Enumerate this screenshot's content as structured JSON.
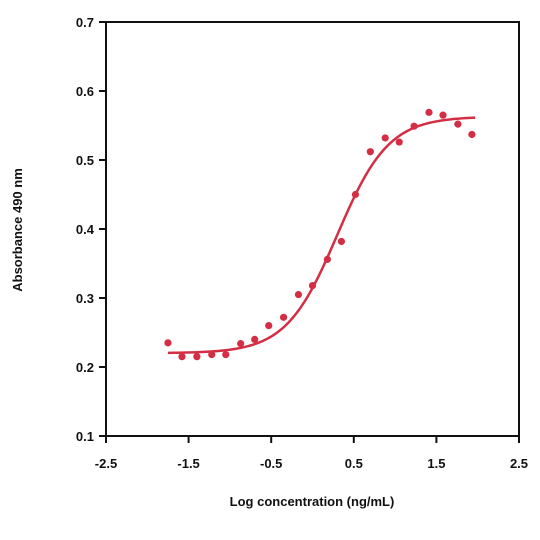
{
  "chart_data": {
    "type": "scatter",
    "title": "",
    "xlabel": "Log concentration (ng/mL)",
    "ylabel": "Absorbance 490 nm",
    "xlim": [
      -2.5,
      2.5
    ],
    "ylim": [
      0.1,
      0.7
    ],
    "xticks": [
      "-2.5",
      "-1.5",
      "-0.5",
      "0.5",
      "1.5",
      "2.5"
    ],
    "yticks": [
      "0.1",
      "0.2",
      "0.3",
      "0.4",
      "0.5",
      "0.6",
      "0.7"
    ],
    "grid": false,
    "series": [
      {
        "type": "scatter",
        "color": "#d42e44",
        "x": [
          -1.75,
          -1.58,
          -1.4,
          -1.22,
          -1.05,
          -0.87,
          -0.7,
          -0.53,
          -0.35,
          -0.17,
          0.0,
          0.18,
          0.35,
          0.52,
          0.7,
          0.88,
          1.05,
          1.23,
          1.41,
          1.58,
          1.76,
          1.93
        ],
        "y": [
          0.235,
          0.215,
          0.215,
          0.218,
          0.218,
          0.234,
          0.24,
          0.26,
          0.272,
          0.305,
          0.318,
          0.356,
          0.382,
          0.45,
          0.512,
          0.532,
          0.526,
          0.549,
          0.569,
          0.565,
          0.552,
          0.537
        ]
      },
      {
        "type": "line",
        "color": "#d42e44",
        "fit": {
          "model": "4PL",
          "bottom": 0.22,
          "top": 0.563,
          "x50": 0.3,
          "slope": 1.4
        },
        "x_range": [
          -1.75,
          1.97
        ]
      }
    ]
  }
}
